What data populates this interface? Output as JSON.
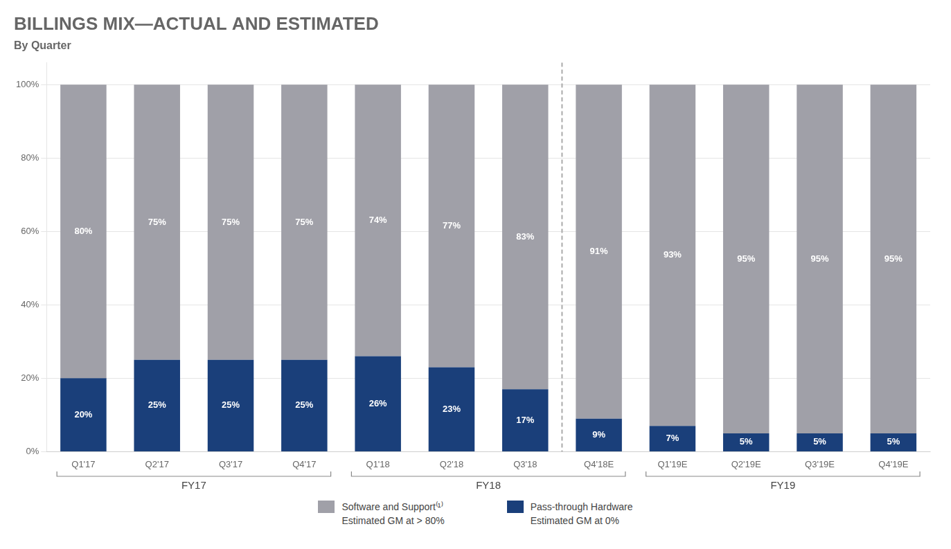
{
  "chart_data": {
    "type": "bar",
    "title": "BILLINGS MIX—ACTUAL AND ESTIMATED",
    "subtitle": "By Quarter",
    "categories": [
      "Q1'17",
      "Q2'17",
      "Q3'17",
      "Q4'17",
      "Q1'18",
      "Q2'18",
      "Q3'18",
      "Q4'18E",
      "Q1'19E",
      "Q2'19E",
      "Q3'19E",
      "Q4'19E"
    ],
    "series": [
      {
        "name": "Pass-through Hardware",
        "color": "#1A3F7A",
        "values": [
          20,
          25,
          25,
          25,
          26,
          23,
          17,
          9,
          7,
          5,
          5,
          5
        ],
        "value_labels": [
          "20%",
          "25%",
          "25%",
          "25%",
          "26%",
          "23%",
          "17%",
          "9%",
          "7%",
          "5%",
          "5%",
          "5%"
        ]
      },
      {
        "name": "Software and Support⁽¹⁾",
        "color": "#A0A0A8",
        "values": [
          80,
          75,
          75,
          75,
          74,
          77,
          83,
          91,
          93,
          95,
          95,
          95
        ],
        "value_labels": [
          "80%",
          "75%",
          "75%",
          "75%",
          "74%",
          "77%",
          "83%",
          "91%",
          "93%",
          "95%",
          "95%",
          "95%"
        ]
      }
    ],
    "stacked": true,
    "data_labels": true,
    "ylim": [
      0,
      106
    ],
    "yticks": [
      {
        "value": 0,
        "label": "0%"
      },
      {
        "value": 20,
        "label": "20%"
      },
      {
        "value": 40,
        "label": "40%"
      },
      {
        "value": 60,
        "label": "60%"
      },
      {
        "value": 80,
        "label": "80%"
      },
      {
        "value": 100,
        "label": "100%"
      }
    ],
    "grid": true,
    "legend": "bottom",
    "groups": [
      {
        "label": "FY17",
        "from": "Q1'17",
        "to": "Q4'17"
      },
      {
        "label": "FY18",
        "from": "Q1'18",
        "to": "Q4'18E"
      },
      {
        "label": "FY19",
        "from": "Q1'19E",
        "to": "Q4'19E"
      }
    ],
    "annotations": [
      {
        "type": "divider",
        "between": [
          "Q3'18",
          "Q4'18E"
        ]
      },
      {
        "type": "legend_note",
        "series": "Software and Support⁽¹⁾",
        "text": "Estimated GM at > 80%"
      },
      {
        "type": "legend_note",
        "series": "Pass-through Hardware",
        "text": "Estimated GM at 0%"
      }
    ]
  }
}
